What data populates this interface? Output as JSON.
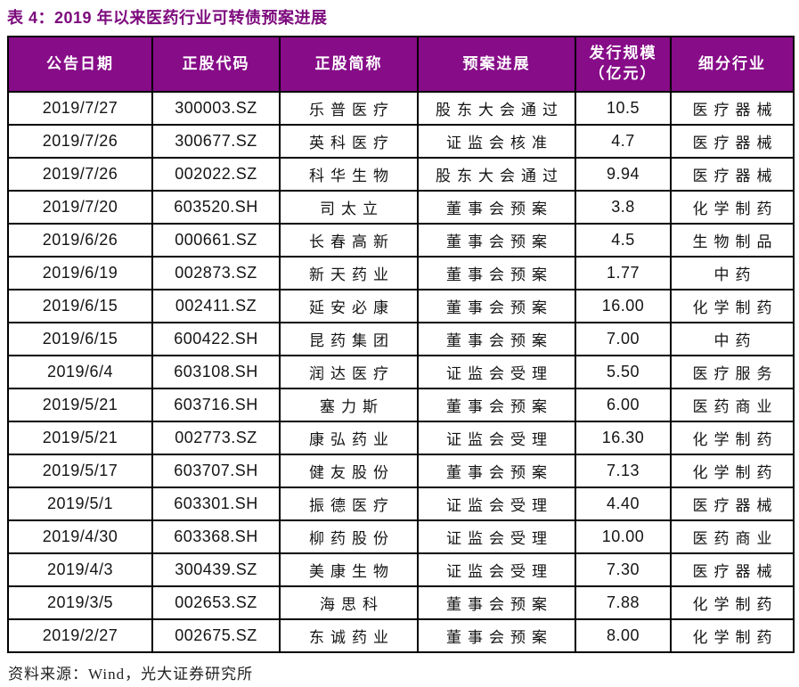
{
  "caption": {
    "text": "表 4：2019 年以来医药行业可转债预案进展"
  },
  "colors": {
    "header_bg": "#870C88",
    "caption_text": "#7D0A7D",
    "table_border": "#000000",
    "body_text": "#141414"
  },
  "table": {
    "headers": [
      {
        "lines": [
          "公告日期"
        ]
      },
      {
        "lines": [
          "正股代码"
        ]
      },
      {
        "lines": [
          "正股简称"
        ]
      },
      {
        "lines": [
          "预案进展"
        ]
      },
      {
        "lines": [
          "发行规模",
          "（亿元）"
        ]
      },
      {
        "lines": [
          "细分行业"
        ]
      }
    ],
    "rows": [
      [
        "2019/7/27",
        "300003.SZ",
        "乐普医疗",
        "股东大会通过",
        "10.5",
        "医疗器械"
      ],
      [
        "2019/7/26",
        "300677.SZ",
        "英科医疗",
        "证监会核准",
        "4.7",
        "医疗器械"
      ],
      [
        "2019/7/26",
        "002022.SZ",
        "科华生物",
        "股东大会通过",
        "9.94",
        "医疗器械"
      ],
      [
        "2019/7/20",
        "603520.SH",
        "司太立",
        "董事会预案",
        "3.8",
        "化学制药"
      ],
      [
        "2019/6/26",
        "000661.SZ",
        "长春高新",
        "董事会预案",
        "4.5",
        "生物制品"
      ],
      [
        "2019/6/19",
        "002873.SZ",
        "新天药业",
        "董事会预案",
        "1.77",
        "中药"
      ],
      [
        "2019/6/15",
        "002411.SZ",
        "延安必康",
        "董事会预案",
        "16.00",
        "化学制药"
      ],
      [
        "2019/6/15",
        "600422.SH",
        "昆药集团",
        "董事会预案",
        "7.00",
        "中药"
      ],
      [
        "2019/6/4",
        "603108.SH",
        "润达医疗",
        "证监会受理",
        "5.50",
        "医疗服务"
      ],
      [
        "2019/5/21",
        "603716.SH",
        "塞力斯",
        "董事会预案",
        "6.00",
        "医药商业"
      ],
      [
        "2019/5/21",
        "002773.SZ",
        "康弘药业",
        "证监会受理",
        "16.30",
        "化学制药"
      ],
      [
        "2019/5/17",
        "603707.SH",
        "健友股份",
        "董事会预案",
        "7.13",
        "化学制药"
      ],
      [
        "2019/5/1",
        "603301.SH",
        "振德医疗",
        "证监会受理",
        "4.40",
        "医疗器械"
      ],
      [
        "2019/4/30",
        "603368.SH",
        "柳药股份",
        "证监会受理",
        "10.00",
        "医药商业"
      ],
      [
        "2019/4/3",
        "300439.SZ",
        "美康生物",
        "证监会受理",
        "7.30",
        "医疗器械"
      ],
      [
        "2019/3/5",
        "002653.SZ",
        "海思科",
        "董事会预案",
        "7.88",
        "化学制药"
      ],
      [
        "2019/2/27",
        "002675.SZ",
        "东诚药业",
        "董事会预案",
        "8.00",
        "化学制药"
      ]
    ]
  },
  "footer": {
    "text": "资料来源：Wind，光大证券研究所"
  }
}
